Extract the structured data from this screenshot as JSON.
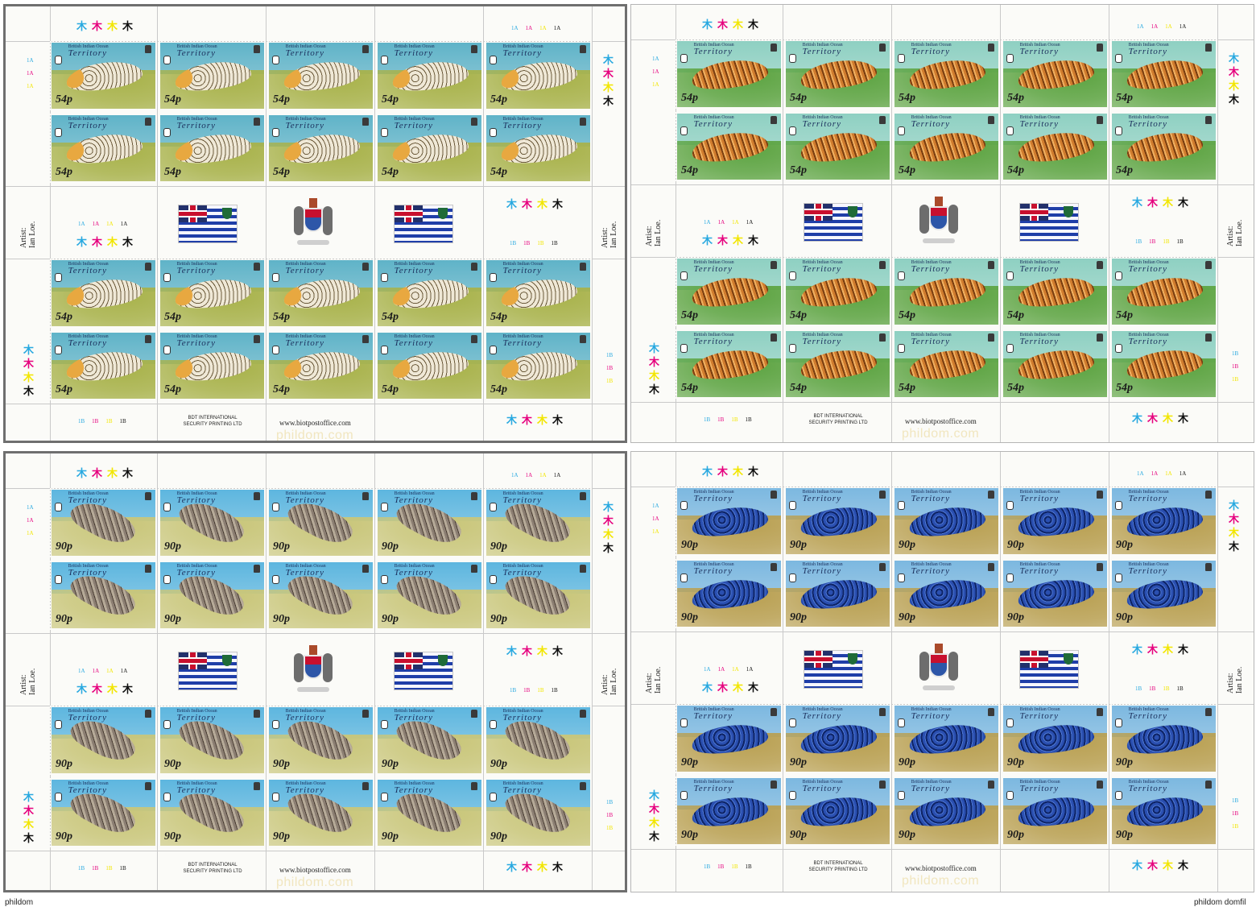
{
  "stamp": {
    "line1": "British Indian Ocean",
    "line2": "Territory"
  },
  "sheets": [
    {
      "value": "54p",
      "sea": "#5fb3c8",
      "ground": "#a8b24a",
      "creature": "#efe8d6",
      "spots": "#6b5a3a",
      "accent": "#e8a840",
      "shape": "spotted"
    },
    {
      "value": "54p",
      "sea": "#8ed0c2",
      "ground": "#5da442",
      "creature": "#d07c2e",
      "spots": "#7a3e10",
      "accent": "#f0b060",
      "shape": "spiky"
    },
    {
      "value": "90p",
      "sea": "#5db6df",
      "ground": "#c9c67a",
      "creature": "#8b7e72",
      "spots": "#4b3f35",
      "accent": "#b6aa98",
      "shape": "slug"
    },
    {
      "value": "90p",
      "sea": "#7cb8e0",
      "ground": "#b9a052",
      "creature": "#2a4fb0",
      "spots": "#0e2466",
      "accent": "#4f78d4",
      "shape": "blue"
    }
  ],
  "markings": {
    "top_codes": [
      "1A",
      "1A",
      "1A",
      "1A"
    ],
    "bottom_codes": [
      "1B",
      "1B",
      "1B",
      "1B"
    ],
    "side_codes_top": [
      "1A",
      "1A",
      "1A"
    ],
    "side_codes_bottom": [
      "1B",
      "1B",
      "1B"
    ],
    "register_mark": "木",
    "register_colors": [
      "#29a9e0",
      "#e6007e",
      "#f2e600",
      "#111111"
    ]
  },
  "gutter": {
    "printer": "BDT INTERNATIONAL\nSECURITY PRINTING LTD",
    "website": "www.biotpostoffice.com",
    "imprint": "Artist:\nIan Loe."
  },
  "watermark": "phildom.com",
  "caption_left": "phildom",
  "caption_right": "phildom domfil"
}
